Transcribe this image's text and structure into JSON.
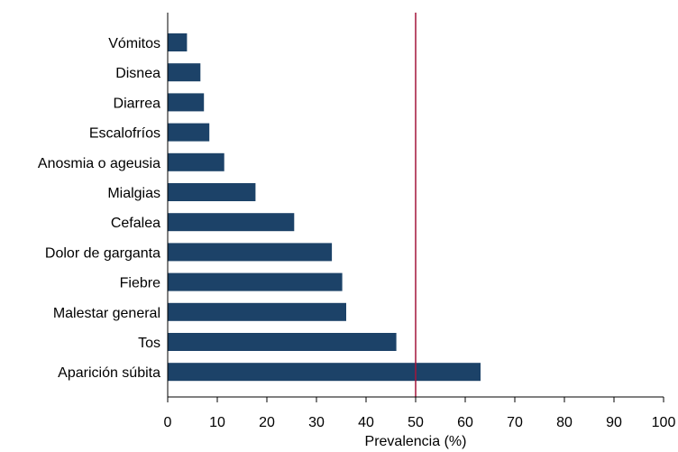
{
  "chart_data": {
    "type": "bar",
    "orientation": "horizontal",
    "categories": [
      "Vómitos",
      "Disnea",
      "Diarrea",
      "Escalofríos",
      "Anosmia o ageusia",
      "Mialgias",
      "Cefalea",
      "Dolor de garganta",
      "Fiebre",
      "Malestar general",
      "Tos",
      "Aparición súbita"
    ],
    "values": [
      3.9,
      6.6,
      7.3,
      8.4,
      11.4,
      17.7,
      25.5,
      33.1,
      35.2,
      36.0,
      46.1,
      63.1
    ],
    "title": "",
    "xlabel": "Prevalencia (%)",
    "ylabel": "",
    "xlim": [
      0,
      100
    ],
    "xticks": [
      0,
      10,
      20,
      30,
      40,
      50,
      60,
      70,
      80,
      90,
      100
    ],
    "reference_line": {
      "x": 50,
      "color": "#a3153a"
    },
    "bar_color": "#1c4268",
    "grid": false,
    "legend": "none"
  }
}
